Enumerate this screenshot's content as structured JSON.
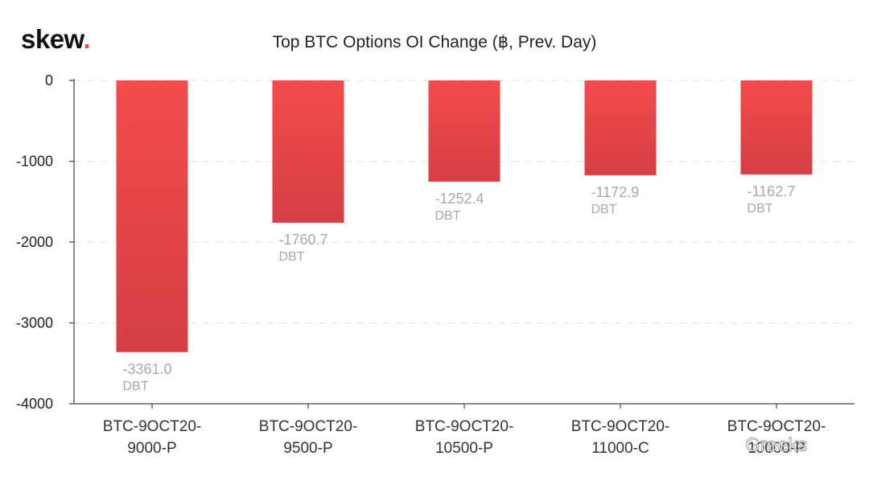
{
  "brand": {
    "name": "skew",
    "dot": "."
  },
  "watermark": {
    "text": "Greeks"
  },
  "colors": {
    "bar_top": "#f44b4b",
    "bar_bottom": "#d43f45",
    "label": "#a8a8a8",
    "brand_dot": "#f04a4a"
  },
  "chart_data": {
    "type": "bar",
    "title": "Top BTC Options OI Change (฿, Prev. Day)",
    "xlabel": "",
    "ylabel": "",
    "ylim": [
      -4000,
      0
    ],
    "yticks": [
      0,
      -1000,
      -2000,
      -3000,
      -4000
    ],
    "grid": true,
    "categories": [
      [
        "BTC-9OCT20-",
        "9000-P"
      ],
      [
        "BTC-9OCT20-",
        "9500-P"
      ],
      [
        "BTC-9OCT20-",
        "10500-P"
      ],
      [
        "BTC-9OCT20-",
        "11000-C"
      ],
      [
        "BTC-9OCT20-",
        "10000-P"
      ]
    ],
    "values": [
      -3361.0,
      -1760.7,
      -1252.4,
      -1172.9,
      -1162.7
    ],
    "value_labels": [
      "-3361.0",
      "-1760.7",
      "-1252.4",
      "-1172.9",
      "-1162.7"
    ],
    "value_unit": "DBT"
  }
}
